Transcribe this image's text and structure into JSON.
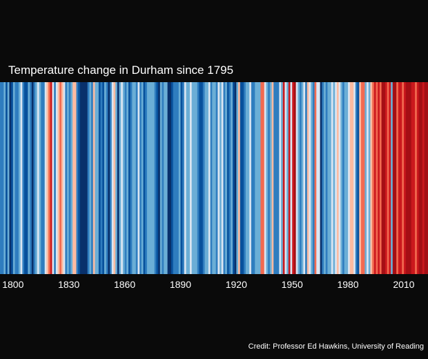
{
  "chart_data": {
    "type": "heatmap",
    "title": "Temperature change in Durham since 1795",
    "start_year": 1795,
    "x_ticks": [
      1800,
      1830,
      1860,
      1890,
      1920,
      1950,
      1980,
      2010
    ],
    "value_scale": "relative anomaly level, -4 (coldest, dark blue) to +4 (warmest, dark red)",
    "values": [
      -2,
      -2,
      -1,
      -3,
      -1,
      -4,
      -3,
      -1,
      -2,
      -2,
      -1,
      0,
      -2,
      -3,
      -3,
      -1,
      -2,
      -4,
      -2,
      -1,
      0,
      -1,
      -2,
      -2,
      0,
      1,
      2,
      3,
      0,
      -2,
      0,
      1,
      2,
      1,
      0,
      -2,
      -1,
      -2,
      -1,
      1,
      1,
      -2,
      -3,
      -4,
      -4,
      -4,
      -4,
      -2,
      -1,
      -2,
      1,
      -1,
      -1,
      -3,
      -2,
      -3,
      -1,
      -2,
      -4,
      -2,
      0,
      1,
      -1,
      -4,
      -1,
      0,
      -1,
      -2,
      -1,
      -3,
      -2,
      -1,
      -1,
      -2,
      0,
      -2,
      -1,
      -3,
      -2,
      -1,
      -1,
      -1,
      -1,
      -2,
      -3,
      -4,
      -1,
      -2,
      -1,
      -1,
      -4,
      -4,
      -3,
      -2,
      -2,
      -2,
      -1,
      -3,
      -2,
      0,
      -1,
      -1,
      0,
      -1,
      -1,
      -1,
      -2,
      -3,
      -3,
      -2,
      -1,
      -1,
      0,
      -2,
      -1,
      -1,
      -2,
      0,
      -1,
      0,
      -2,
      -1,
      -3,
      -2,
      -1,
      -3,
      -4,
      -1,
      1,
      -3,
      -3,
      -2,
      -1,
      -1,
      0,
      -2,
      -2,
      -1,
      -1,
      -1,
      2,
      2,
      0,
      -1,
      -2,
      -1,
      1,
      -2,
      -2,
      -2,
      0,
      -1,
      3,
      0,
      -1,
      3,
      0,
      3,
      4,
      0,
      -1,
      -2,
      -1,
      0,
      -2,
      1,
      0,
      -1,
      -2,
      2,
      0,
      0,
      -4,
      -2,
      -1,
      -2,
      -1,
      -1,
      0,
      -1,
      0,
      1,
      0,
      -1,
      -2,
      -1,
      -1,
      0,
      1,
      1,
      0,
      -2,
      -3,
      1,
      2,
      2,
      -1,
      0,
      -1,
      1,
      2,
      3,
      2,
      3,
      2,
      4,
      4,
      3,
      2,
      3,
      -1,
      4,
      4,
      2,
      3,
      3,
      2,
      3,
      4,
      4,
      4,
      3,
      3,
      2,
      3,
      4,
      4,
      3,
      4,
      4
    ],
    "colors": {
      "-4": "#08306b",
      "-3": "#08519c",
      "-2": "#2f7dbf",
      "-1": "#6baed6",
      "0": "#dbe6f2",
      "1": "#fcbba1",
      "2": "#f26a50",
      "3": "#cb181d",
      "4": "#a50f15"
    }
  },
  "credit": "Credit: Professor Ed Hawkins, University of Reading"
}
